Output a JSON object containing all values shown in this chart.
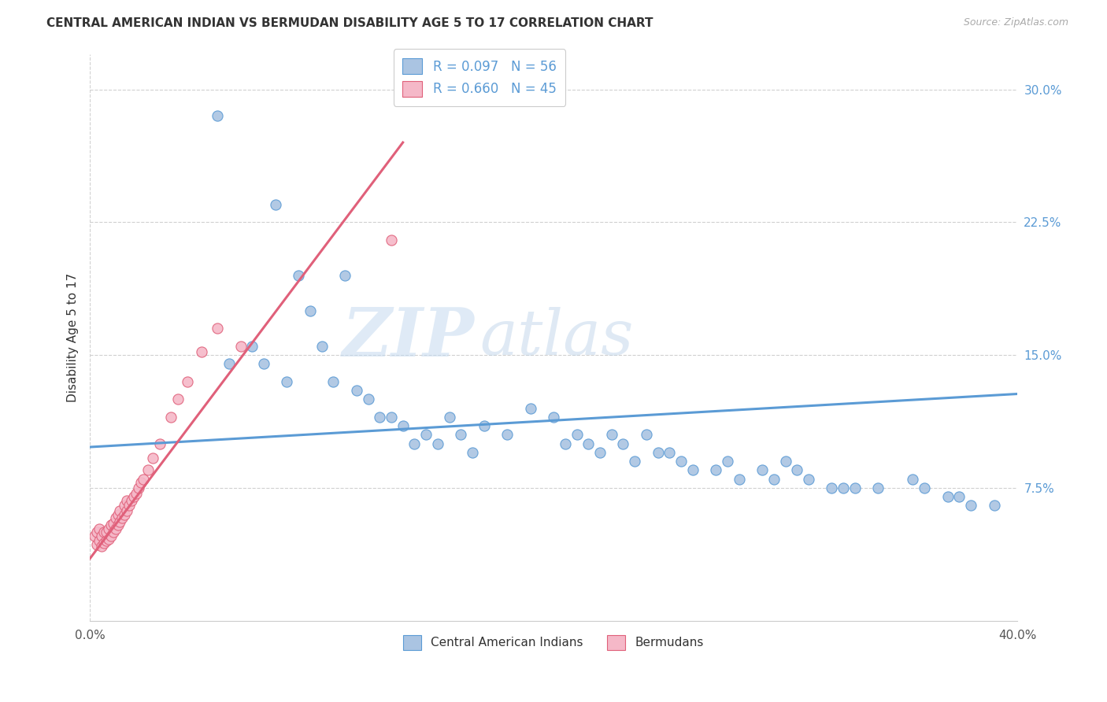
{
  "title": "CENTRAL AMERICAN INDIAN VS BERMUDAN DISABILITY AGE 5 TO 17 CORRELATION CHART",
  "source": "Source: ZipAtlas.com",
  "ylabel": "Disability Age 5 to 17",
  "xlim": [
    0.0,
    0.4
  ],
  "ylim": [
    0.0,
    0.32
  ],
  "x_ticks": [
    0.0,
    0.1,
    0.2,
    0.3,
    0.4
  ],
  "x_tick_labels": [
    "0.0%",
    "",
    "",
    "",
    "40.0%"
  ],
  "y_ticks_right": [
    0.075,
    0.15,
    0.225,
    0.3
  ],
  "y_tick_labels_right": [
    "7.5%",
    "15.0%",
    "22.5%",
    "30.0%"
  ],
  "color_blue": "#aac4e2",
  "color_pink": "#f5b8c8",
  "line_color_blue": "#5b9bd5",
  "line_color_pink": "#e0607a",
  "watermark_zip": "ZIP",
  "watermark_atlas": "atlas",
  "blue_scatter_x": [
    0.055,
    0.08,
    0.09,
    0.095,
    0.1,
    0.105,
    0.11,
    0.115,
    0.12,
    0.125,
    0.13,
    0.135,
    0.14,
    0.145,
    0.15,
    0.155,
    0.16,
    0.165,
    0.17,
    0.18,
    0.19,
    0.2,
    0.205,
    0.21,
    0.215,
    0.22,
    0.225,
    0.23,
    0.235,
    0.24,
    0.245,
    0.25,
    0.255,
    0.26,
    0.27,
    0.275,
    0.28,
    0.29,
    0.295,
    0.3,
    0.305,
    0.31,
    0.32,
    0.325,
    0.33,
    0.34,
    0.355,
    0.36,
    0.37,
    0.375,
    0.38,
    0.39,
    0.06,
    0.07,
    0.075,
    0.085
  ],
  "blue_scatter_y": [
    0.285,
    0.235,
    0.195,
    0.175,
    0.155,
    0.135,
    0.195,
    0.13,
    0.125,
    0.115,
    0.115,
    0.11,
    0.1,
    0.105,
    0.1,
    0.115,
    0.105,
    0.095,
    0.11,
    0.105,
    0.12,
    0.115,
    0.1,
    0.105,
    0.1,
    0.095,
    0.105,
    0.1,
    0.09,
    0.105,
    0.095,
    0.095,
    0.09,
    0.085,
    0.085,
    0.09,
    0.08,
    0.085,
    0.08,
    0.09,
    0.085,
    0.08,
    0.075,
    0.075,
    0.075,
    0.075,
    0.08,
    0.075,
    0.07,
    0.07,
    0.065,
    0.065,
    0.145,
    0.155,
    0.145,
    0.135
  ],
  "pink_scatter_x": [
    0.002,
    0.003,
    0.003,
    0.004,
    0.004,
    0.005,
    0.005,
    0.006,
    0.006,
    0.007,
    0.007,
    0.008,
    0.008,
    0.009,
    0.009,
    0.01,
    0.01,
    0.011,
    0.011,
    0.012,
    0.012,
    0.013,
    0.013,
    0.014,
    0.015,
    0.015,
    0.016,
    0.016,
    0.017,
    0.018,
    0.019,
    0.02,
    0.021,
    0.022,
    0.023,
    0.025,
    0.027,
    0.03,
    0.035,
    0.038,
    0.042,
    0.048,
    0.055,
    0.065,
    0.13
  ],
  "pink_scatter_y": [
    0.048,
    0.043,
    0.05,
    0.045,
    0.052,
    0.042,
    0.048,
    0.044,
    0.05,
    0.045,
    0.05,
    0.046,
    0.052,
    0.048,
    0.054,
    0.05,
    0.055,
    0.052,
    0.058,
    0.054,
    0.06,
    0.056,
    0.062,
    0.058,
    0.06,
    0.065,
    0.062,
    0.068,
    0.065,
    0.068,
    0.07,
    0.072,
    0.075,
    0.078,
    0.08,
    0.085,
    0.092,
    0.1,
    0.115,
    0.125,
    0.135,
    0.152,
    0.165,
    0.155,
    0.215
  ],
  "blue_line_x": [
    0.0,
    0.4
  ],
  "blue_line_y": [
    0.098,
    0.128
  ],
  "pink_line_x": [
    0.0,
    0.135
  ],
  "pink_line_y": [
    0.035,
    0.27
  ]
}
